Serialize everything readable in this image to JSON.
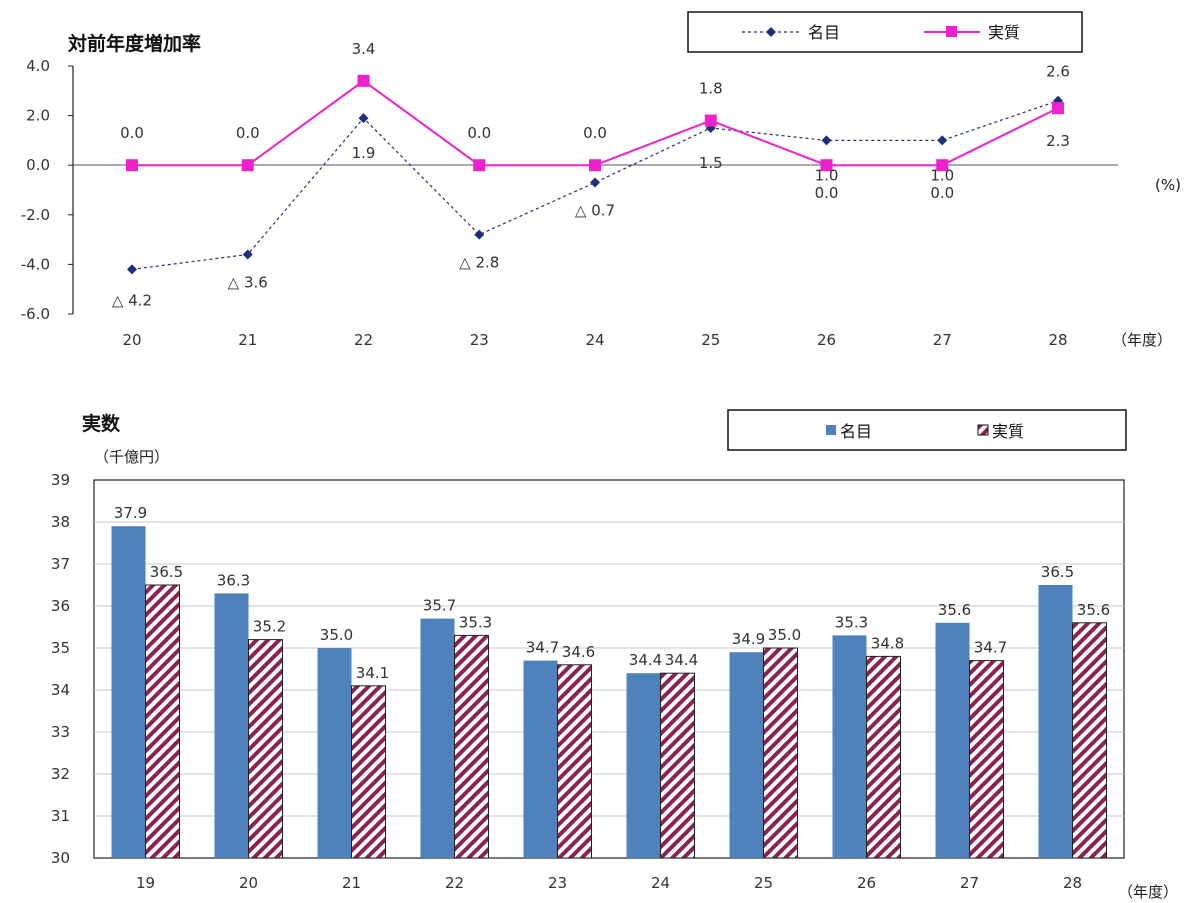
{
  "chart_data": [
    {
      "type": "line",
      "title": "対前年度増加率",
      "y_unit": "(%)",
      "x_unit": "（年度）",
      "categories": [
        "20",
        "21",
        "22",
        "23",
        "24",
        "25",
        "26",
        "27",
        "28"
      ],
      "ylim": [
        -6.0,
        4.0
      ],
      "y_ticks": [
        "4.0",
        "2.0",
        "0.0",
        "-2.0",
        "-4.0",
        "-6.0"
      ],
      "grid": false,
      "legend_position": "top-right",
      "series": [
        {
          "name": "名目",
          "color": "#1f2f7a",
          "values": [
            -4.2,
            -3.6,
            1.9,
            -2.8,
            -0.7,
            1.5,
            1.0,
            1.0,
            2.6
          ],
          "labels": [
            "△ 4.2",
            "△ 3.6",
            "1.9",
            "△ 2.8",
            "△ 0.7",
            "1.5",
            "1.0",
            "1.0",
            "2.6"
          ]
        },
        {
          "name": "実質",
          "color": "#ee22cc",
          "values": [
            0.0,
            0.0,
            3.4,
            0.0,
            0.0,
            1.8,
            0.0,
            0.0,
            2.3
          ],
          "labels": [
            "0.0",
            "0.0",
            "3.4",
            "0.0",
            "0.0",
            "1.8",
            "0.0",
            "0.0",
            "2.3"
          ]
        }
      ]
    },
    {
      "type": "bar",
      "title": "実数",
      "y_unit": "（千億円）",
      "x_unit": "（年度）",
      "categories": [
        "19",
        "20",
        "21",
        "22",
        "23",
        "24",
        "25",
        "26",
        "27",
        "28"
      ],
      "ylim": [
        30,
        39
      ],
      "y_ticks": [
        "39",
        "38",
        "37",
        "36",
        "35",
        "34",
        "33",
        "32",
        "31",
        "30"
      ],
      "grid": true,
      "legend_position": "top-right",
      "series": [
        {
          "name": "名目",
          "color": "#4f81bd",
          "values": [
            37.9,
            36.3,
            35.0,
            35.7,
            34.7,
            34.4,
            34.9,
            35.3,
            35.6,
            36.5
          ],
          "labels": [
            "37.9",
            "36.3",
            "35.0",
            "35.7",
            "34.7",
            "34.4",
            "34.9",
            "35.3",
            "35.6",
            "36.5"
          ]
        },
        {
          "name": "実質",
          "color": "#8b2252",
          "values": [
            36.5,
            35.2,
            34.1,
            35.3,
            34.6,
            34.4,
            35.0,
            34.8,
            34.7,
            35.6
          ],
          "labels": [
            "36.5",
            "35.2",
            "34.1",
            "35.3",
            "34.6",
            "34.4",
            "35.0",
            "34.8",
            "34.7",
            "35.6"
          ]
        }
      ]
    }
  ]
}
